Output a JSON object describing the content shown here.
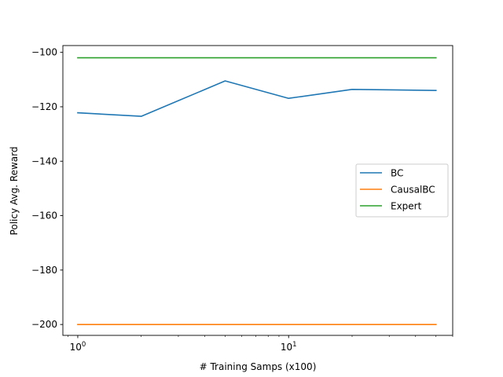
{
  "chart_data": {
    "type": "line",
    "xlabel": "# Training Samps (x100)",
    "ylabel": "Policy Avg. Reward",
    "x_scale": "log",
    "xlim": [
      0.85,
      60
    ],
    "ylim": [
      -204,
      -97.5
    ],
    "x_ticks": [
      {
        "value": 1,
        "base": "10",
        "exp": "0"
      },
      {
        "value": 10,
        "base": "10",
        "exp": "1"
      }
    ],
    "y_ticks": [
      {
        "value": -100,
        "label": "−100"
      },
      {
        "value": -120,
        "label": "−120"
      },
      {
        "value": -140,
        "label": "−140"
      },
      {
        "value": -160,
        "label": "−160"
      },
      {
        "value": -180,
        "label": "−180"
      },
      {
        "value": -200,
        "label": "−200"
      }
    ],
    "grid": false,
    "legend_position": "center-right",
    "series": [
      {
        "name": "BC",
        "color": "#1f77b4",
        "x": [
          1,
          2,
          5,
          10,
          20,
          50
        ],
        "y": [
          -122.2,
          -123.5,
          -110.5,
          -116.9,
          -113.6,
          -114.0
        ]
      },
      {
        "name": "CausalBC",
        "color": "#ff7f0e",
        "x": [
          1,
          50
        ],
        "y": [
          -200,
          -200
        ]
      },
      {
        "name": "Expert",
        "color": "#2ca02c",
        "x": [
          1,
          50
        ],
        "y": [
          -102,
          -102
        ]
      }
    ]
  }
}
